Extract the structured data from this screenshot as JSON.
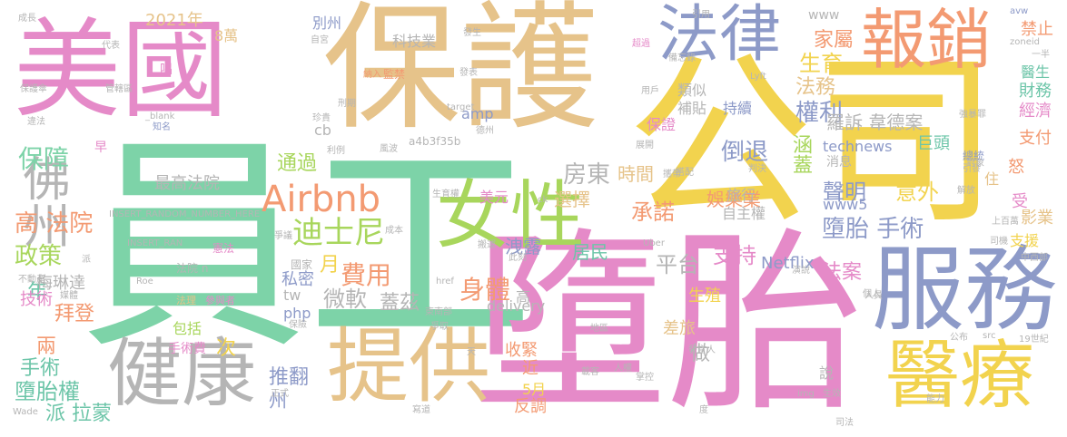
{
  "colors": {
    "pink": "#e58ac8",
    "green": "#7dd3a8",
    "tan": "#e6c38a",
    "gray": "#b5b5b5",
    "blue": "#8d9ac8",
    "orange": "#f39a72",
    "yellow": "#f2d34e",
    "lime": "#a8d65c",
    "teal": "#6cc5a8"
  },
  "words": [
    {
      "text": "員工",
      "color": "green"
    },
    {
      "text": "墮胎",
      "color": "pink"
    },
    {
      "text": "公司",
      "color": "yellow"
    },
    {
      "text": "保護",
      "color": "tan"
    },
    {
      "text": "美國",
      "color": "pink"
    },
    {
      "text": "服務",
      "color": "blue"
    },
    {
      "text": "報銷",
      "color": "orange"
    },
    {
      "text": "法律",
      "color": "blue"
    },
    {
      "text": "健康",
      "color": "gray"
    },
    {
      "text": "提供",
      "color": "tan"
    },
    {
      "text": "醫療",
      "color": "yellow"
    },
    {
      "text": "女性",
      "color": "lime"
    },
    {
      "text": "Airbnb",
      "color": "orange"
    },
    {
      "text": "迪士尼",
      "color": "lime"
    },
    {
      "text": "佛州",
      "color": "gray"
    },
    {
      "text": "保障",
      "color": "green"
    },
    {
      "text": "高 法院",
      "color": "orange"
    },
    {
      "text": "政策",
      "color": "lime"
    },
    {
      "text": "身體",
      "color": "orange"
    },
    {
      "text": "費用",
      "color": "orange"
    },
    {
      "text": "微軟",
      "color": "gray"
    },
    {
      "text": "墮胎權",
      "color": "teal"
    },
    {
      "text": "墮胎 手術",
      "color": "blue"
    },
    {
      "text": "支持",
      "color": "pink"
    },
    {
      "text": "平台",
      "color": "gray"
    },
    {
      "text": "承諾",
      "color": "orange"
    },
    {
      "text": "權利",
      "color": "blue"
    },
    {
      "text": "法務",
      "color": "tan"
    },
    {
      "text": "生育",
      "color": "yellow"
    },
    {
      "text": "家屬",
      "color": "orange"
    },
    {
      "text": "聲明",
      "color": "blue"
    },
    {
      "text": "意外",
      "color": "yellow"
    },
    {
      "text": "羅訴 韋德案",
      "color": "gray"
    },
    {
      "text": "倒退",
      "color": "blue"
    },
    {
      "text": "涵蓋",
      "color": "lime"
    },
    {
      "text": "Netflix",
      "color": "blue"
    },
    {
      "text": "法案",
      "color": "pink"
    },
    {
      "text": "娛樂業",
      "color": "orange"
    },
    {
      "text": "美元",
      "color": "pink"
    },
    {
      "text": "房東",
      "color": "gray"
    },
    {
      "text": "選擇",
      "color": "tan"
    },
    {
      "text": "時間",
      "color": "tan"
    },
    {
      "text": "居民",
      "color": "teal"
    },
    {
      "text": "洩露",
      "color": "blue"
    },
    {
      "text": "通過",
      "color": "lime"
    },
    {
      "text": "最高法院",
      "color": "gray"
    },
    {
      "text": "推翻",
      "color": "blue"
    },
    {
      "text": "年",
      "color": "teal"
    },
    {
      "text": "月",
      "color": "yellow"
    },
    {
      "text": "私密",
      "color": "blue"
    },
    {
      "text": "蓋茲",
      "color": "gray"
    },
    {
      "text": "拜登",
      "color": "orange"
    },
    {
      "text": "梅琳達",
      "color": "gray"
    },
    {
      "text": "兩",
      "color": "orange"
    },
    {
      "text": "手術",
      "color": "teal"
    },
    {
      "text": "派 拉蒙",
      "color": "teal"
    },
    {
      "text": "次",
      "color": "yellow"
    },
    {
      "text": "包括",
      "color": "lime"
    },
    {
      "text": "手術費",
      "color": "pink"
    },
    {
      "text": "收緊",
      "color": "orange"
    },
    {
      "text": "差旅",
      "color": "tan"
    },
    {
      "text": "生殖",
      "color": "yellow"
    },
    {
      "text": "做",
      "color": "gray"
    },
    {
      "text": "反調",
      "color": "orange"
    },
    {
      "text": "delivery",
      "color": "gray"
    },
    {
      "text": "php",
      "color": "blue"
    },
    {
      "text": "tw",
      "color": "gray"
    },
    {
      "text": "技術",
      "color": "pink"
    },
    {
      "text": "高",
      "color": "gray"
    },
    {
      "text": "近",
      "color": "orange"
    },
    {
      "text": "5月",
      "color": "yellow"
    },
    {
      "text": "州",
      "color": "blue"
    },
    {
      "text": "說",
      "color": "gray"
    },
    {
      "text": "自主權",
      "color": "gray"
    },
    {
      "text": "旅行",
      "color": "gray"
    },
    {
      "text": "www5",
      "color": "blue"
    },
    {
      "text": "巨頭",
      "color": "teal"
    },
    {
      "text": "technews",
      "color": "blue"
    },
    {
      "text": "消息",
      "color": "gray"
    },
    {
      "text": "持續",
      "color": "blue"
    },
    {
      "text": "類似",
      "color": "gray"
    },
    {
      "text": "補貼",
      "color": "gray"
    },
    {
      "text": "保證",
      "color": "pink"
    },
    {
      "text": "amp",
      "color": "blue"
    },
    {
      "text": "cb",
      "color": "gray"
    },
    {
      "text": "科技業",
      "color": "gray"
    },
    {
      "text": "8萬",
      "color": "tan"
    },
    {
      "text": "2021年",
      "color": "tan"
    },
    {
      "text": "別州",
      "color": "blue"
    },
    {
      "text": "www",
      "color": "gray"
    },
    {
      "text": "禁止",
      "color": "orange"
    },
    {
      "text": "醫生",
      "color": "teal"
    },
    {
      "text": "財務",
      "color": "teal"
    },
    {
      "text": "經濟",
      "color": "pink"
    },
    {
      "text": "支付",
      "color": "orange"
    },
    {
      "text": "影業",
      "color": "tan"
    },
    {
      "text": "支援",
      "color": "yellow"
    },
    {
      "text": "受",
      "color": "pink"
    },
    {
      "text": "怒",
      "color": "orange"
    },
    {
      "text": "住",
      "color": "tan"
    },
    {
      "text": "總統",
      "color": "blue"
    },
    {
      "text": "國家",
      "color": "gray"
    },
    {
      "text": "憲法",
      "color": "pink"
    },
    {
      "text": "法院 n",
      "color": "gray"
    },
    {
      "text": "法理",
      "color": "tan"
    },
    {
      "text": "參與者",
      "color": "pink"
    },
    {
      "text": "INSERT_RANDOM_NUMBER_HERE",
      "color": "gray"
    },
    {
      "text": "INSERT_RAN",
      "color": "gray"
    },
    {
      "text": "a4b3f35b",
      "color": "gray"
    },
    {
      "text": "唱",
      "color": "pink"
    },
    {
      "text": "早",
      "color": "pink"
    },
    {
      "text": "成長",
      "color": "gray"
    },
    {
      "text": "代表",
      "color": "gray"
    },
    {
      "text": "保護傘",
      "color": "gray"
    },
    {
      "text": "管轄區",
      "color": "gray"
    },
    {
      "text": "_blank",
      "color": "gray"
    },
    {
      "text": "知名",
      "color": "blue"
    },
    {
      "text": "違法",
      "color": "gray"
    },
    {
      "text": "自宮",
      "color": "gray"
    },
    {
      "text": "監禁",
      "color": "orange"
    },
    {
      "text": "納入",
      "color": "orange"
    },
    {
      "text": "刑期",
      "color": "gray"
    },
    {
      "text": "珍貴",
      "color": "gray"
    },
    {
      "text": "利例",
      "color": "gray"
    },
    {
      "text": "風波",
      "color": "gray"
    },
    {
      "text": "德州",
      "color": "gray"
    },
    {
      "text": "發生",
      "color": "gray"
    },
    {
      "text": "發表",
      "color": "gray"
    },
    {
      "text": "超過",
      "color": "pink"
    },
    {
      "text": "引用",
      "color": "gray"
    },
    {
      "text": "用戶",
      "color": "gray"
    },
    {
      "text": "展開",
      "color": "gray"
    },
    {
      "text": "Lyft",
      "color": "gray"
    },
    {
      "text": "avw",
      "color": "blue"
    },
    {
      "text": "zoneid",
      "color": "gray"
    },
    {
      "text": "一半",
      "color": "gray"
    },
    {
      "text": "強暴罪",
      "color": "gray"
    },
    {
      "text": "對象",
      "color": "gray"
    },
    {
      "text": "引發",
      "color": "gray"
    },
    {
      "text": "判決",
      "color": "gray"
    },
    {
      "text": "解放",
      "color": "gray"
    },
    {
      "text": "上百萬",
      "color": "gray"
    },
    {
      "text": "司機",
      "color": "gray"
    },
    {
      "text": "中西部",
      "color": "gray"
    },
    {
      "text": "生育權",
      "color": "gray"
    },
    {
      "text": "ck",
      "color": "gray"
    },
    {
      "text": "成本",
      "color": "gray"
    },
    {
      "text": "搬運",
      "color": "gray"
    },
    {
      "text": "東南部",
      "color": "gray"
    },
    {
      "text": "地區",
      "color": "gray"
    },
    {
      "text": "src",
      "color": "gray"
    },
    {
      "text": "19世紀",
      "color": "gray"
    },
    {
      "text": "公布",
      "color": "gray"
    },
    {
      "text": "人員",
      "color": "gray"
    },
    {
      "text": "演說",
      "color": "gray"
    },
    {
      "text": "Uber",
      "color": "gray"
    },
    {
      "text": "發言人",
      "color": "gray"
    },
    {
      "text": "此刻",
      "color": "gray"
    },
    {
      "text": "Roe",
      "color": "gray"
    },
    {
      "text": "Wade",
      "color": "gray"
    },
    {
      "text": "正式",
      "color": "gray"
    },
    {
      "text": "img",
      "color": "gray"
    },
    {
      "text": "生效",
      "color": "gray"
    },
    {
      "text": "能力",
      "color": "gray"
    },
    {
      "text": "司法",
      "color": "gray"
    },
    {
      "text": "人權",
      "color": "gray"
    },
    {
      "text": "掌控",
      "color": "gray"
    },
    {
      "text": "載客",
      "color": "gray"
    },
    {
      "text": "寫道",
      "color": "gray"
    },
    {
      "text": "天",
      "color": "gray"
    },
    {
      "text": "媒體",
      "color": "gray"
    },
    {
      "text": "不動產",
      "color": "gray"
    },
    {
      "text": "保險",
      "color": "gray"
    },
    {
      "text": "href",
      "color": "gray"
    },
    {
      "text": "備忘錄",
      "color": "gray"
    },
    {
      "text": "爭議",
      "color": "gray"
    },
    {
      "text": "攜帶",
      "color": "gray"
    },
    {
      "text": "target",
      "color": "gray"
    },
    {
      "text": "搭配",
      "color": "gray"
    },
    {
      "text": "派",
      "color": "gray"
    },
    {
      "text": "度",
      "color": "gray"
    },
    {
      "text": "爭取",
      "color": "gray"
    },
    {
      "text": "個人",
      "color": "gray"
    }
  ]
}
